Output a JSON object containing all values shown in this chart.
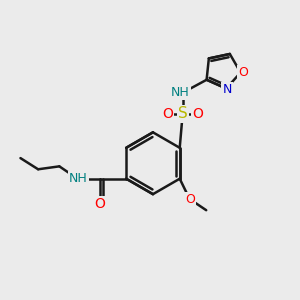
{
  "bg_color": "#ebebeb",
  "bond_color": "#1a1a1a",
  "bond_width": 1.8,
  "colors": {
    "N": "#0000cd",
    "O": "#ff0000",
    "S": "#b8b800",
    "H": "#008080"
  },
  "font_size": 10,
  "fig_size": [
    3.0,
    3.0
  ],
  "dpi": 100,
  "xlim": [
    0,
    10
  ],
  "ylim": [
    0,
    10
  ]
}
